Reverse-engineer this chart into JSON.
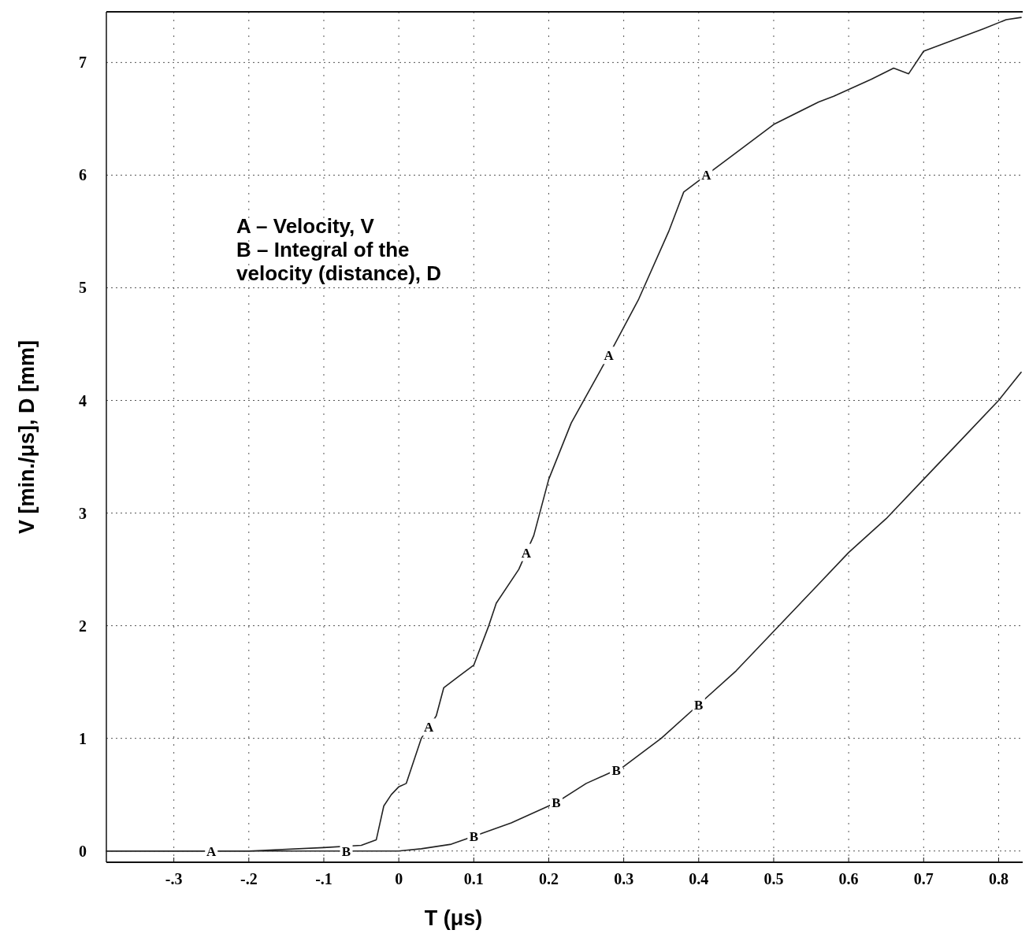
{
  "chart_data": {
    "type": "line",
    "xlabel": "T (μs)",
    "ylabel": "V [min./μs], D [mm]",
    "xlim": [
      -0.39,
      0.83
    ],
    "ylim": [
      -0.1,
      7.45
    ],
    "xticks": [
      {
        "value": -0.3,
        "label": "-.3"
      },
      {
        "value": -0.2,
        "label": "-.2"
      },
      {
        "value": -0.1,
        "label": "-.1"
      },
      0,
      0.1,
      0.2,
      0.3,
      0.4,
      0.5,
      0.6,
      0.7,
      0.8
    ],
    "yticks": [
      0,
      1,
      2,
      3,
      4,
      5,
      6,
      7
    ],
    "grid": true,
    "series": [
      {
        "color": "#222222",
        "x": [
          -0.39,
          -0.25,
          -0.2,
          -0.1,
          -0.05,
          -0.03,
          -0.02,
          -0.01,
          0,
          0.01,
          0.03,
          0.04,
          0.05,
          0.06,
          0.08,
          0.1,
          0.12,
          0.13,
          0.16,
          0.17,
          0.18,
          0.2,
          0.23,
          0.28,
          0.32,
          0.36,
          0.38,
          0.41,
          0.45,
          0.5,
          0.56,
          0.58,
          0.63,
          0.66,
          0.68,
          0.7,
          0.74,
          0.78,
          0.81,
          0.83
        ],
        "values": [
          0,
          0,
          0,
          0.03,
          0.05,
          0.1,
          0.4,
          0.5,
          0.57,
          0.6,
          1.0,
          1.1,
          1.2,
          1.45,
          1.55,
          1.65,
          2.0,
          2.2,
          2.5,
          2.65,
          2.8,
          3.3,
          3.8,
          4.4,
          4.9,
          5.5,
          5.85,
          6.0,
          6.2,
          6.45,
          6.65,
          6.7,
          6.85,
          6.95,
          6.9,
          7.1,
          7.2,
          7.3,
          7.38,
          7.4
        ]
      },
      {
        "color": "#222222",
        "x": [
          -0.39,
          -0.1,
          -0.07,
          0,
          0.03,
          0.07,
          0.1,
          0.15,
          0.2,
          0.21,
          0.25,
          0.29,
          0.3,
          0.35,
          0.4,
          0.45,
          0.5,
          0.55,
          0.6,
          0.65,
          0.7,
          0.75,
          0.8,
          0.83
        ],
        "values": [
          0,
          0,
          0,
          0,
          0.02,
          0.06,
          0.13,
          0.25,
          0.4,
          0.43,
          0.6,
          0.72,
          0.75,
          1.0,
          1.3,
          1.6,
          1.95,
          2.3,
          2.65,
          2.95,
          3.3,
          3.65,
          4.0,
          4.25
        ]
      }
    ],
    "annotations": [
      "A – Velocity, V",
      "B – Integral of the velocity (distance), D",
      {
        "text": "A",
        "x": -0.25,
        "y": 0
      },
      {
        "text": "A",
        "x": 0.04,
        "y": 1.1
      },
      {
        "text": "A",
        "x": 0.17,
        "y": 2.65
      },
      {
        "text": "A",
        "x": 0.28,
        "y": 4.4
      },
      {
        "text": "A",
        "x": 0.41,
        "y": 6.0
      },
      {
        "text": "B",
        "x": -0.07,
        "y": 0
      },
      {
        "text": "B",
        "x": 0.1,
        "y": 0.13
      },
      {
        "text": "B",
        "x": 0.21,
        "y": 0.43
      },
      {
        "text": "B",
        "x": 0.29,
        "y": 0.72
      },
      {
        "text": "B",
        "x": 0.4,
        "y": 1.3
      }
    ]
  }
}
